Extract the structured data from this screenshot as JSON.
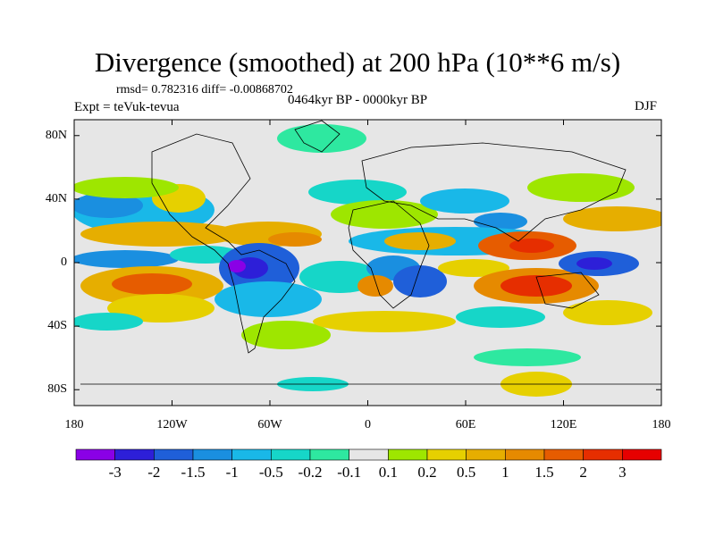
{
  "title": "Divergence (smoothed) at 200 hPa (10**6 m/s)",
  "stats_line": "rmsd= 0.782316 diff= -0.00868702",
  "experiment": "Expt = teVuk-tevua",
  "period": "0464kyr BP - 0000kyr BP",
  "season": "DJF",
  "axes": {
    "x_ticks": [
      "180",
      "120W",
      "60W",
      "0",
      "60E",
      "120E",
      "180"
    ],
    "y_ticks": [
      "80N",
      "40N",
      "0",
      "40S",
      "80S"
    ]
  },
  "colorbar": {
    "labels": [
      "-3",
      "-2",
      "-1.5",
      "-1",
      "-0.5",
      "-0.2",
      "-0.1",
      "0.1",
      "0.2",
      "0.5",
      "1",
      "1.5",
      "2",
      "3"
    ],
    "colors": [
      "#8a00e6",
      "#2d1fd8",
      "#1f5fd9",
      "#1a8fe0",
      "#19b8e8",
      "#16d6c8",
      "#2ee8a0",
      "#e6e6e6",
      "#9ee600",
      "#e6d000",
      "#e6ae00",
      "#e68a00",
      "#e65c00",
      "#e62e00",
      "#e60000"
    ]
  },
  "map_background_color": "#e6e6e6",
  "coastline_color": "#000000"
}
